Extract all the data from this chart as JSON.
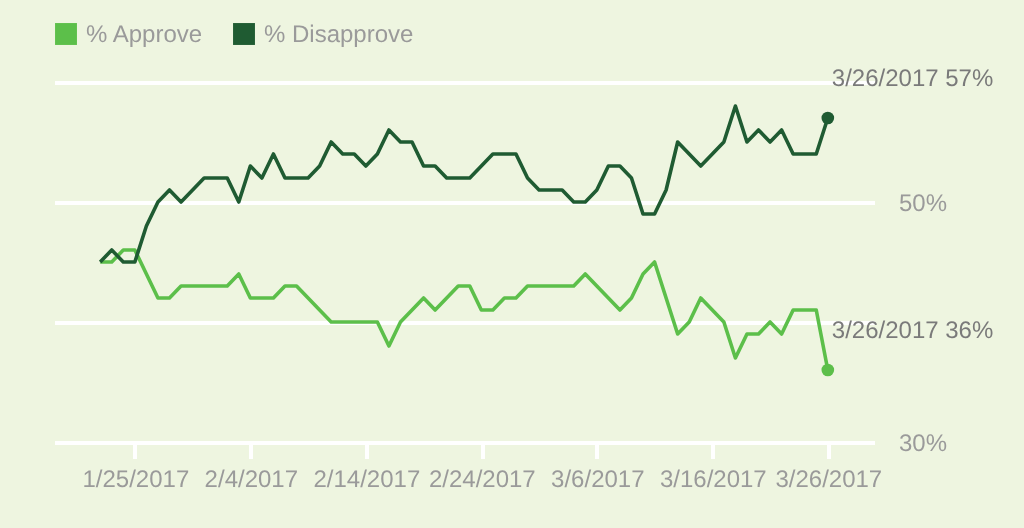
{
  "chart_data": {
    "type": "line",
    "x": [
      "2017-01-22",
      "2017-01-23",
      "2017-01-24",
      "2017-01-25",
      "2017-01-26",
      "2017-01-27",
      "2017-01-28",
      "2017-01-29",
      "2017-01-30",
      "2017-01-31",
      "2017-02-01",
      "2017-02-02",
      "2017-02-03",
      "2017-02-04",
      "2017-02-05",
      "2017-02-06",
      "2017-02-07",
      "2017-02-08",
      "2017-02-09",
      "2017-02-10",
      "2017-02-11",
      "2017-02-12",
      "2017-02-13",
      "2017-02-14",
      "2017-02-15",
      "2017-02-16",
      "2017-02-17",
      "2017-02-18",
      "2017-02-19",
      "2017-02-20",
      "2017-02-21",
      "2017-02-22",
      "2017-02-23",
      "2017-02-24",
      "2017-02-25",
      "2017-02-26",
      "2017-02-27",
      "2017-02-28",
      "2017-03-01",
      "2017-03-02",
      "2017-03-03",
      "2017-03-04",
      "2017-03-05",
      "2017-03-06",
      "2017-03-07",
      "2017-03-08",
      "2017-03-09",
      "2017-03-10",
      "2017-03-11",
      "2017-03-12",
      "2017-03-13",
      "2017-03-14",
      "2017-03-15",
      "2017-03-16",
      "2017-03-17",
      "2017-03-18",
      "2017-03-19",
      "2017-03-20",
      "2017-03-21",
      "2017-03-22",
      "2017-03-23",
      "2017-03-24",
      "2017-03-25",
      "2017-03-26"
    ],
    "series": [
      {
        "name": "% Approve",
        "color": "#5cbf4a",
        "values": [
          45,
          45,
          46,
          46,
          44,
          42,
          42,
          43,
          43,
          43,
          43,
          43,
          44,
          42,
          42,
          42,
          43,
          43,
          42,
          41,
          40,
          40,
          40,
          40,
          40,
          38,
          40,
          41,
          42,
          41,
          42,
          43,
          43,
          41,
          41,
          42,
          42,
          43,
          43,
          43,
          43,
          43,
          44,
          43,
          42,
          41,
          42,
          44,
          45,
          42,
          39,
          40,
          42,
          41,
          40,
          37,
          39,
          39,
          40,
          39,
          41,
          41,
          41,
          36
        ]
      },
      {
        "name": "% Disapprove",
        "color": "#1f5b32",
        "values": [
          45,
          46,
          45,
          45,
          48,
          50,
          51,
          50,
          51,
          52,
          52,
          52,
          50,
          53,
          52,
          54,
          52,
          52,
          52,
          53,
          55,
          54,
          54,
          53,
          54,
          56,
          55,
          55,
          53,
          53,
          52,
          52,
          52,
          53,
          54,
          54,
          54,
          52,
          51,
          51,
          51,
          50,
          50,
          51,
          53,
          53,
          52,
          49,
          49,
          51,
          55,
          54,
          53,
          54,
          55,
          58,
          55,
          56,
          55,
          56,
          54,
          54,
          54,
          57
        ]
      }
    ],
    "xlim": [
      "2017-01-18",
      "2017-03-30"
    ],
    "xticks": [
      {
        "value": "2017-01-25",
        "label": "1/25/2017"
      },
      {
        "value": "2017-02-04",
        "label": "2/4/2017"
      },
      {
        "value": "2017-02-14",
        "label": "2/14/2017"
      },
      {
        "value": "2017-02-24",
        "label": "2/24/2017"
      },
      {
        "value": "2017-03-06",
        "label": "3/6/2017"
      },
      {
        "value": "2017-03-16",
        "label": "3/16/2017"
      },
      {
        "value": "2017-03-26",
        "label": "3/26/2017"
      }
    ],
    "ylim": [
      30,
      60
    ],
    "yticks": [
      {
        "value": 30,
        "label": "30%"
      },
      {
        "value": 40,
        "label": null
      },
      {
        "value": 50,
        "label": "50%"
      },
      {
        "value": 60,
        "label": null
      }
    ],
    "grid": "y",
    "legend": "top left",
    "annotations": [
      {
        "text": "3/26/2017 57%",
        "x": "2017-03-26",
        "y": 57
      },
      {
        "text": "3/26/2017 36%",
        "x": "2017-03-26",
        "y": 36
      }
    ]
  }
}
